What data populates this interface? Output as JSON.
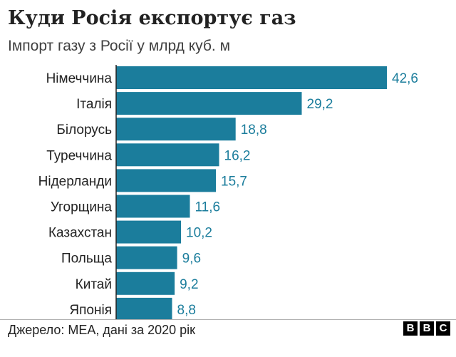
{
  "header": {
    "title": "Куди Росія експортує газ",
    "subtitle": "Імпорт газу з Росії у млрд куб. м"
  },
  "footer": {
    "source": "Джерело: МЕА, дані за 2020 рік",
    "logo_letters": [
      "B",
      "B",
      "C"
    ]
  },
  "colors": {
    "bar": "#1b7d9c",
    "value_label": "#1b7d9c",
    "category_label": "#222222",
    "axis": "#222222"
  },
  "chart_data": {
    "type": "bar",
    "orientation": "horizontal",
    "title": "Куди Росія експортує газ",
    "subtitle": "Імпорт газу з Росії у млрд куб. м",
    "categories": [
      "Німеччина",
      "Італія",
      "Білорусь",
      "Туреччина",
      "Нідерланди",
      "Угорщина",
      "Казахстан",
      "Польща",
      "Китай",
      "Японія"
    ],
    "values": [
      42.6,
      29.2,
      18.8,
      16.2,
      15.7,
      11.6,
      10.2,
      9.6,
      9.2,
      8.8
    ],
    "value_labels": [
      "42,6",
      "29,2",
      "18,8",
      "16,2",
      "15,7",
      "11,6",
      "10,2",
      "9,6",
      "9,2",
      "8,8"
    ],
    "xlim": [
      0,
      42.6
    ],
    "grid": false,
    "legend": "none"
  }
}
